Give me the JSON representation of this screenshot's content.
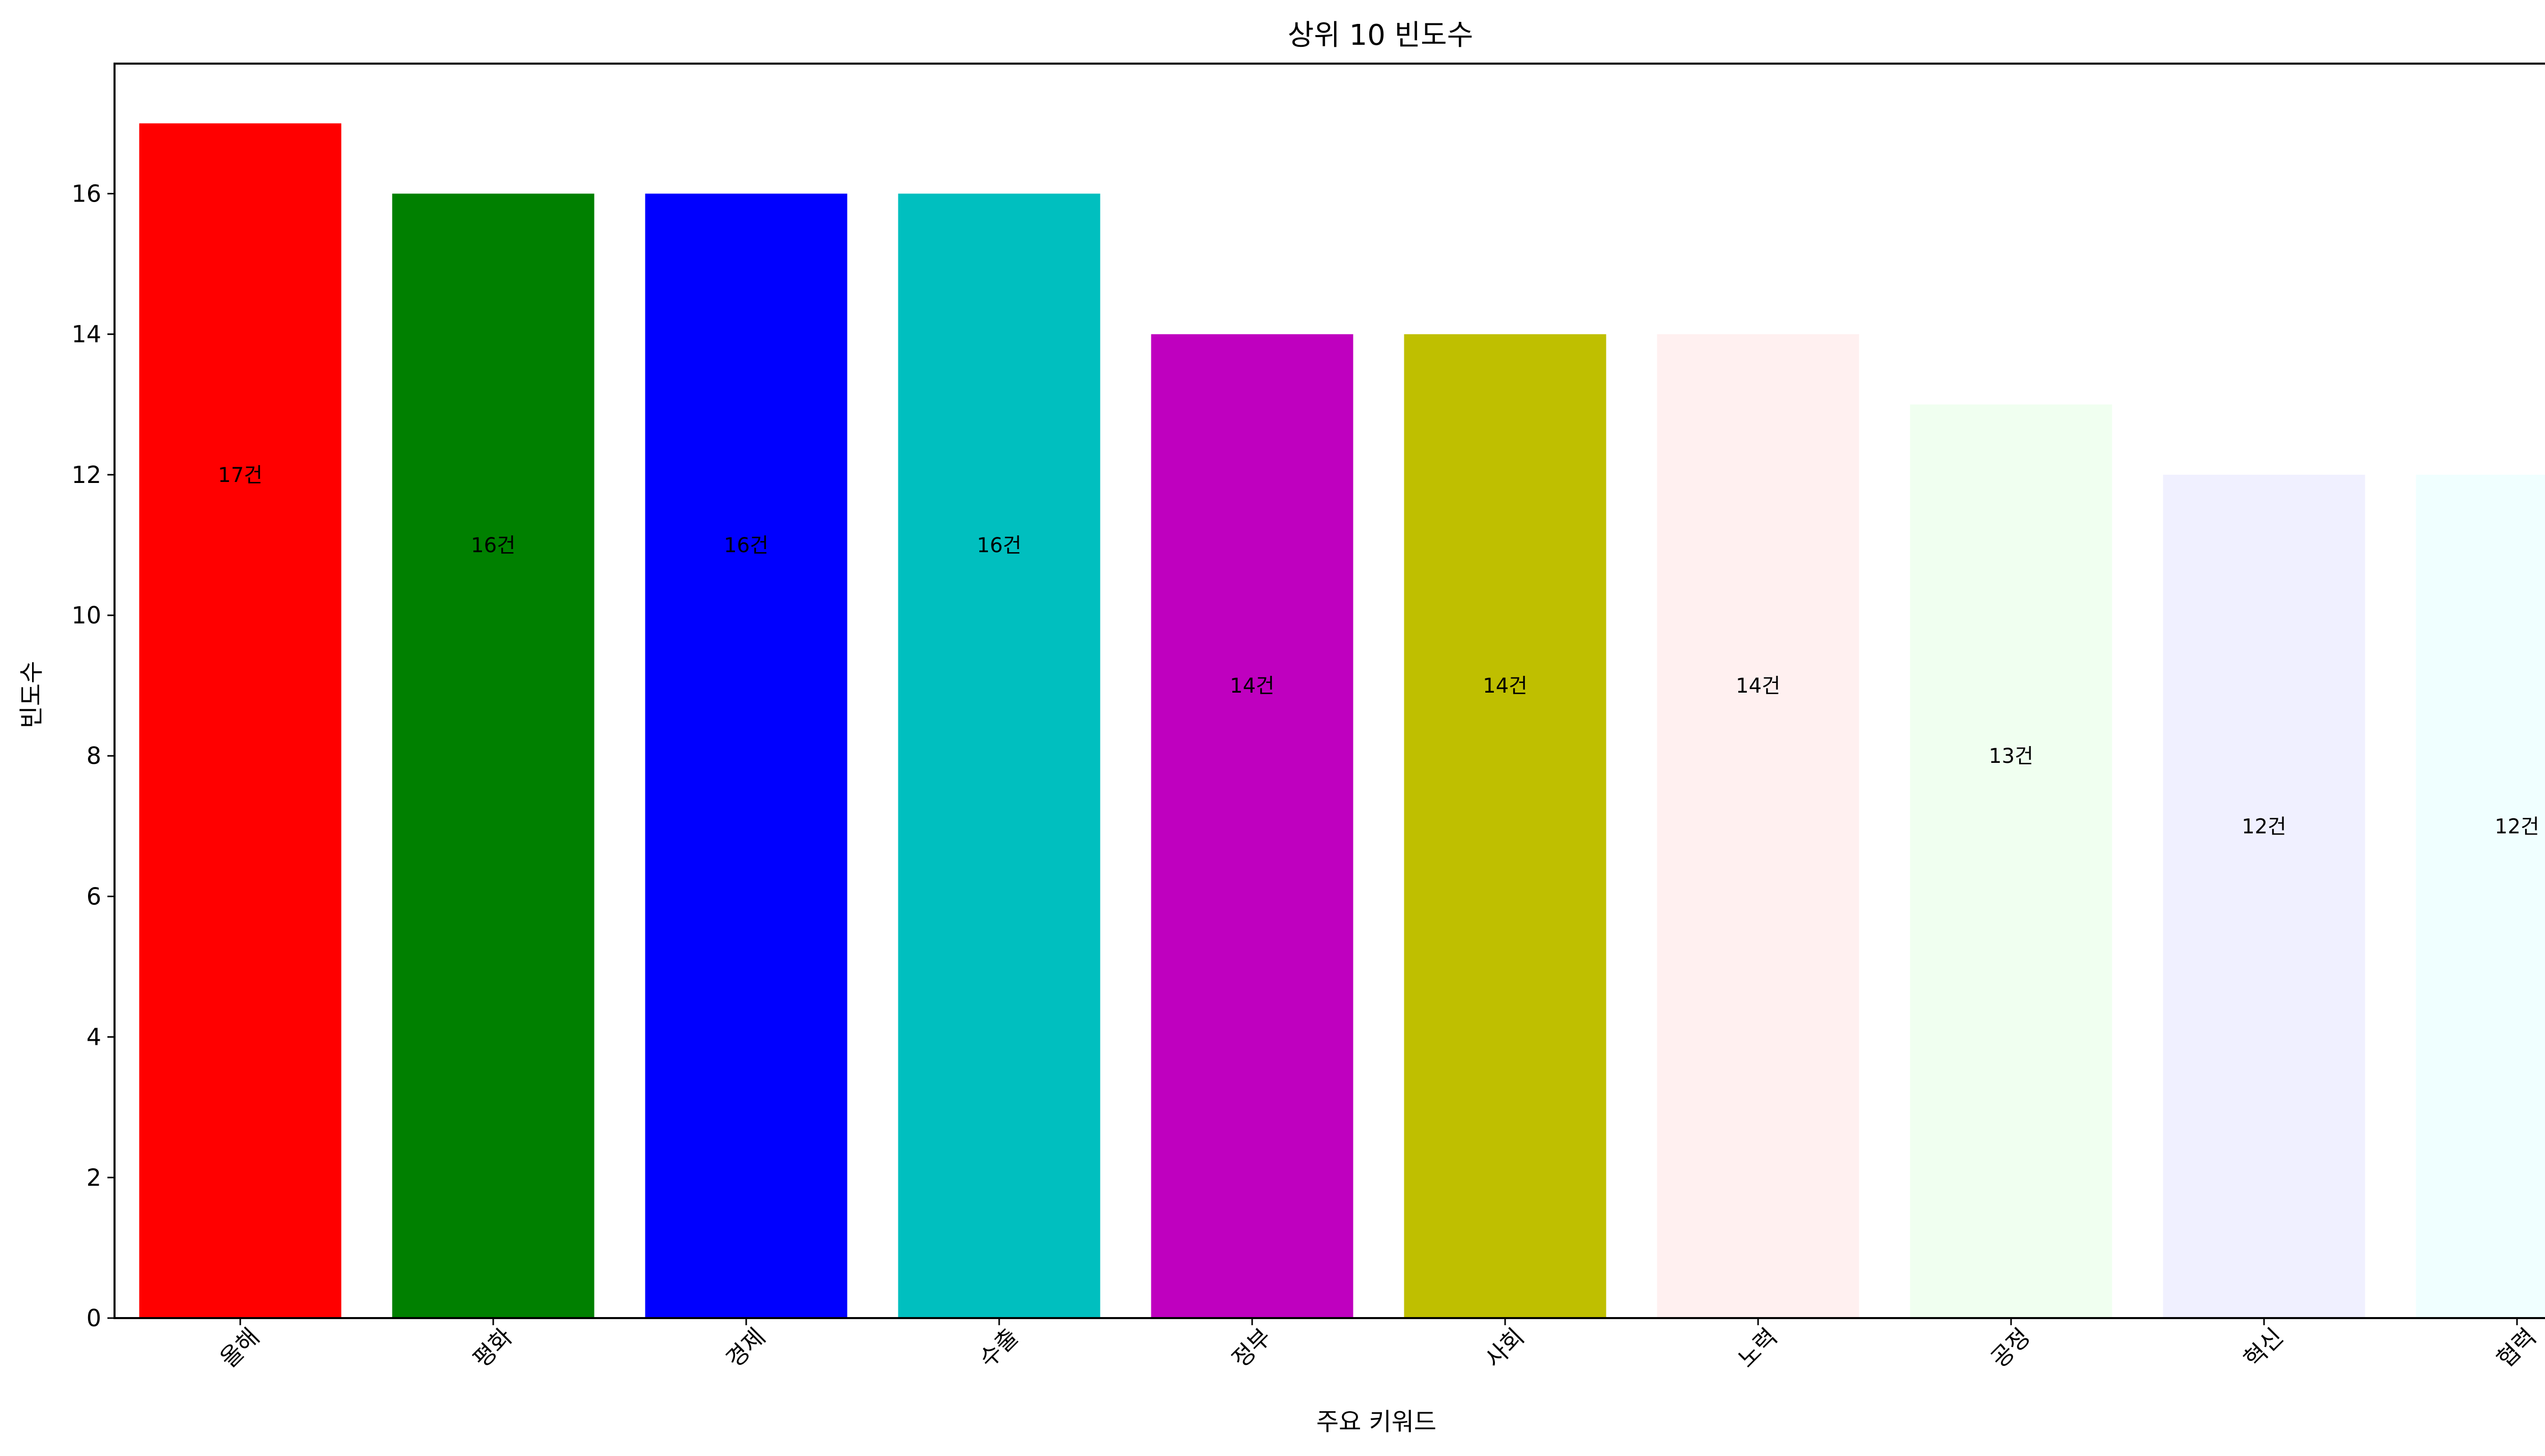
{
  "chart_data": {
    "type": "bar",
    "title": "상위 10 빈도수",
    "xlabel": "주요 키워드",
    "ylabel": "빈도수",
    "categories": [
      "올해",
      "평화",
      "경제",
      "수출",
      "정부",
      "사회",
      "노력",
      "공정",
      "혁신",
      "협력"
    ],
    "values": [
      17,
      16,
      16,
      16,
      14,
      14,
      14,
      13,
      12,
      12
    ],
    "data_labels": [
      "17건",
      "16건",
      "16건",
      "16건",
      "14건",
      "14건",
      "14건",
      "13건",
      "12건",
      "12건"
    ],
    "colors": [
      "#ff0000",
      "#008000",
      "#0000ff",
      "#00bfbf",
      "#bf00bf",
      "#bfbf00",
      "#fff0f0",
      "#f0fff0",
      "#f0f0ff",
      "#f0ffff"
    ],
    "yticks": [
      0,
      2,
      4,
      6,
      8,
      10,
      12,
      14,
      16
    ],
    "ylim": [
      0,
      17.85
    ],
    "grid": false,
    "legend": "none"
  }
}
